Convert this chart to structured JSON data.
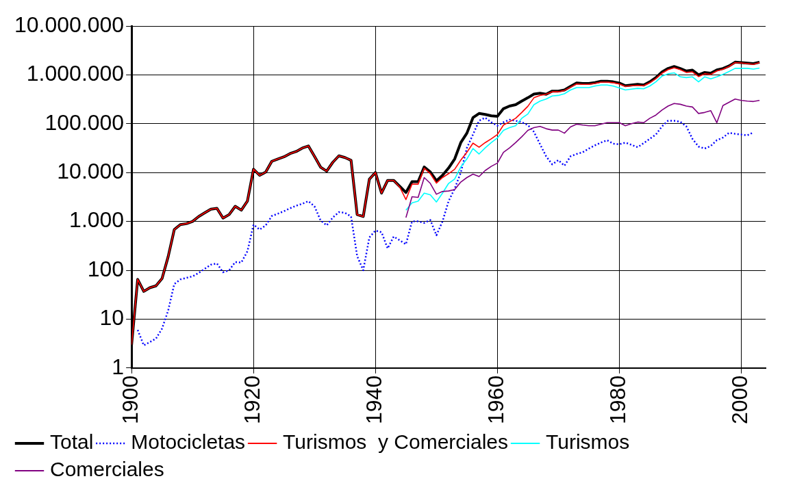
{
  "chart_data": {
    "type": "line",
    "x": [
      1900,
      1901,
      1902,
      1903,
      1904,
      1905,
      1906,
      1907,
      1908,
      1909,
      1910,
      1911,
      1912,
      1913,
      1914,
      1915,
      1916,
      1917,
      1918,
      1919,
      1920,
      1921,
      1922,
      1923,
      1924,
      1925,
      1926,
      1927,
      1928,
      1929,
      1930,
      1931,
      1932,
      1933,
      1934,
      1935,
      1936,
      1937,
      1938,
      1939,
      1940,
      1941,
      1942,
      1943,
      1944,
      1945,
      1946,
      1947,
      1948,
      1949,
      1950,
      1951,
      1952,
      1953,
      1954,
      1955,
      1956,
      1957,
      1958,
      1959,
      1960,
      1961,
      1962,
      1963,
      1964,
      1965,
      1966,
      1967,
      1968,
      1969,
      1970,
      1971,
      1972,
      1973,
      1974,
      1975,
      1976,
      1977,
      1978,
      1979,
      1980,
      1981,
      1982,
      1983,
      1984,
      1985,
      1986,
      1987,
      1988,
      1989,
      1990,
      1991,
      1992,
      1993,
      1994,
      1995,
      1996,
      1997,
      1998,
      1999,
      2000,
      2001,
      2002,
      2003
    ],
    "series": [
      {
        "name": "Total",
        "color": "#000000",
        "line_style": "solid",
        "values": [
          3,
          65,
          37,
          44,
          48,
          68,
          190,
          680,
          860,
          900,
          1000,
          1260,
          1500,
          1780,
          1850,
          1170,
          1380,
          2040,
          1700,
          2600,
          11700,
          8800,
          10200,
          17000,
          19000,
          21000,
          24500,
          27000,
          31700,
          35000,
          21500,
          12900,
          10700,
          16200,
          22000,
          20300,
          17800,
          1380,
          1260,
          7300,
          10000,
          3800,
          6900,
          6900,
          5200,
          3900,
          6500,
          6500,
          13000,
          10300,
          6800,
          8800,
          12400,
          19000,
          41000,
          64000,
          133000,
          162000,
          155000,
          145000,
          142000,
          203000,
          230000,
          245000,
          290000,
          340000,
          405000,
          420000,
          400000,
          465000,
          465000,
          490000,
          580000,
          680000,
          665000,
          665000,
          695000,
          740000,
          740000,
          720000,
          680000,
          600000,
          620000,
          640000,
          620000,
          720000,
          880000,
          1140000,
          1350000,
          1480000,
          1350000,
          1200000,
          1250000,
          1000000,
          1120000,
          1080000,
          1260000,
          1350000,
          1520000,
          1820000,
          1780000,
          1740000,
          1700000,
          1820000
        ]
      },
      {
        "name": "Motocicletas",
        "color": "#0000ff",
        "line_style": "dotted",
        "values": [
          null,
          6,
          2.9,
          3.4,
          4,
          6.4,
          15,
          52,
          65,
          70,
          75,
          88,
          107,
          130,
          138,
          91,
          100,
          147,
          144,
          245,
          860,
          680,
          830,
          1290,
          1440,
          1620,
          1860,
          2100,
          2300,
          2600,
          2040,
          1050,
          830,
          1200,
          1550,
          1500,
          1260,
          195,
          100,
          470,
          650,
          600,
          280,
          490,
          410,
          340,
          1000,
          1000,
          930,
          1070,
          520,
          1000,
          2600,
          4700,
          10000,
          32000,
          60000,
          115000,
          133000,
          107000,
          91000,
          107000,
          121000,
          115000,
          107000,
          94000,
          68000,
          38000,
          21500,
          14700,
          18000,
          13800,
          21500,
          24000,
          26000,
          31000,
          36000,
          41000,
          46000,
          39000,
          38000,
          41000,
          37000,
          33000,
          40000,
          49000,
          60000,
          88000,
          115000,
          115000,
          110000,
          88000,
          49000,
          34000,
          31000,
          35000,
          46000,
          52000,
          65000,
          62000,
          60000,
          58000,
          66000,
          null
        ]
      },
      {
        "name": "Turismos  y Comerciales",
        "color": "#ff0000",
        "line_style": "solid",
        "values": [
          3,
          65,
          37,
          44,
          48,
          68,
          190,
          680,
          860,
          900,
          1000,
          1260,
          1500,
          1780,
          1850,
          1170,
          1380,
          2040,
          1700,
          2600,
          11700,
          8800,
          10200,
          17000,
          19000,
          21000,
          24500,
          27000,
          31700,
          35000,
          21500,
          12900,
          10700,
          16200,
          22000,
          20300,
          17800,
          1380,
          1260,
          7300,
          10000,
          3800,
          6900,
          6900,
          5000,
          2800,
          5800,
          5800,
          12300,
          9500,
          6100,
          7900,
          9500,
          11700,
          18000,
          26000,
          40000,
          33000,
          41000,
          49000,
          60000,
          94000,
          110000,
          129000,
          170000,
          227000,
          340000,
          380000,
          400000,
          450000,
          450000,
          480000,
          560000,
          650000,
          640000,
          640000,
          670000,
          710000,
          710000,
          690000,
          650000,
          580000,
          600000,
          610000,
          600000,
          690000,
          840000,
          1080000,
          1280000,
          1400000,
          1280000,
          1120000,
          1150000,
          920000,
          1050000,
          1020000,
          1200000,
          1300000,
          1480000,
          1780000,
          1750000,
          1700000,
          1640000,
          1780000
        ]
      },
      {
        "name": "Turismos",
        "color": "#00ffff",
        "line_style": "solid",
        "values": [
          null,
          null,
          null,
          null,
          null,
          null,
          null,
          null,
          null,
          null,
          null,
          null,
          null,
          null,
          null,
          null,
          null,
          null,
          null,
          null,
          null,
          null,
          null,
          null,
          null,
          null,
          null,
          null,
          null,
          null,
          null,
          null,
          null,
          null,
          null,
          null,
          null,
          null,
          null,
          null,
          null,
          null,
          null,
          null,
          null,
          1700,
          2400,
          2600,
          3800,
          3500,
          2500,
          3800,
          6000,
          7400,
          13000,
          19000,
          31000,
          24000,
          32000,
          41000,
          51000,
          73000,
          83000,
          91000,
          129000,
          158000,
          245000,
          290000,
          320000,
          370000,
          380000,
          410000,
          490000,
          550000,
          550000,
          550000,
          590000,
          620000,
          620000,
          590000,
          540000,
          490000,
          510000,
          530000,
          520000,
          590000,
          720000,
          940000,
          1050000,
          1100000,
          910000,
          880000,
          910000,
          720000,
          910000,
          830000,
          910000,
          1020000,
          1170000,
          1360000,
          1360000,
          1360000,
          1310000,
          1380000
        ]
      },
      {
        "name": "Comerciales",
        "color": "#800080",
        "line_style": "solid",
        "values": [
          null,
          null,
          null,
          null,
          null,
          null,
          null,
          null,
          null,
          null,
          null,
          null,
          null,
          null,
          null,
          null,
          null,
          null,
          null,
          null,
          null,
          null,
          null,
          null,
          null,
          null,
          null,
          null,
          null,
          null,
          null,
          null,
          null,
          null,
          null,
          null,
          null,
          null,
          null,
          null,
          null,
          null,
          null,
          null,
          null,
          1200,
          3200,
          3100,
          7900,
          6000,
          3600,
          4100,
          4200,
          4500,
          6400,
          7900,
          9300,
          8300,
          11000,
          13400,
          15600,
          26000,
          32000,
          41000,
          54000,
          73000,
          83000,
          88000,
          79000,
          74000,
          74000,
          64000,
          86000,
          98000,
          94000,
          91000,
          91000,
          98000,
          105000,
          105000,
          105000,
          91000,
          100000,
          108000,
          105000,
          129000,
          150000,
          190000,
          230000,
          260000,
          250000,
          230000,
          220000,
          162000,
          170000,
          185000,
          105000,
          235000,
          275000,
          320000,
          300000,
          290000,
          285000,
          300000
        ]
      }
    ],
    "xlim": [
      1900,
      2004
    ],
    "xticks": [
      1900,
      1920,
      1940,
      1960,
      1980,
      2000
    ],
    "log": "y",
    "ylim": [
      1,
      10000000
    ],
    "yticks": [
      1,
      10,
      100,
      {
        "value": 1000,
        "label": "1.000"
      },
      {
        "value": 10000,
        "label": "10.000"
      },
      {
        "value": 100000,
        "label": "100.000"
      },
      {
        "value": 1000000,
        "label": "1.000.000"
      },
      {
        "value": 10000000,
        "label": "10.000.000"
      }
    ],
    "grid": true,
    "legend": "bottom",
    "marker": "none"
  }
}
